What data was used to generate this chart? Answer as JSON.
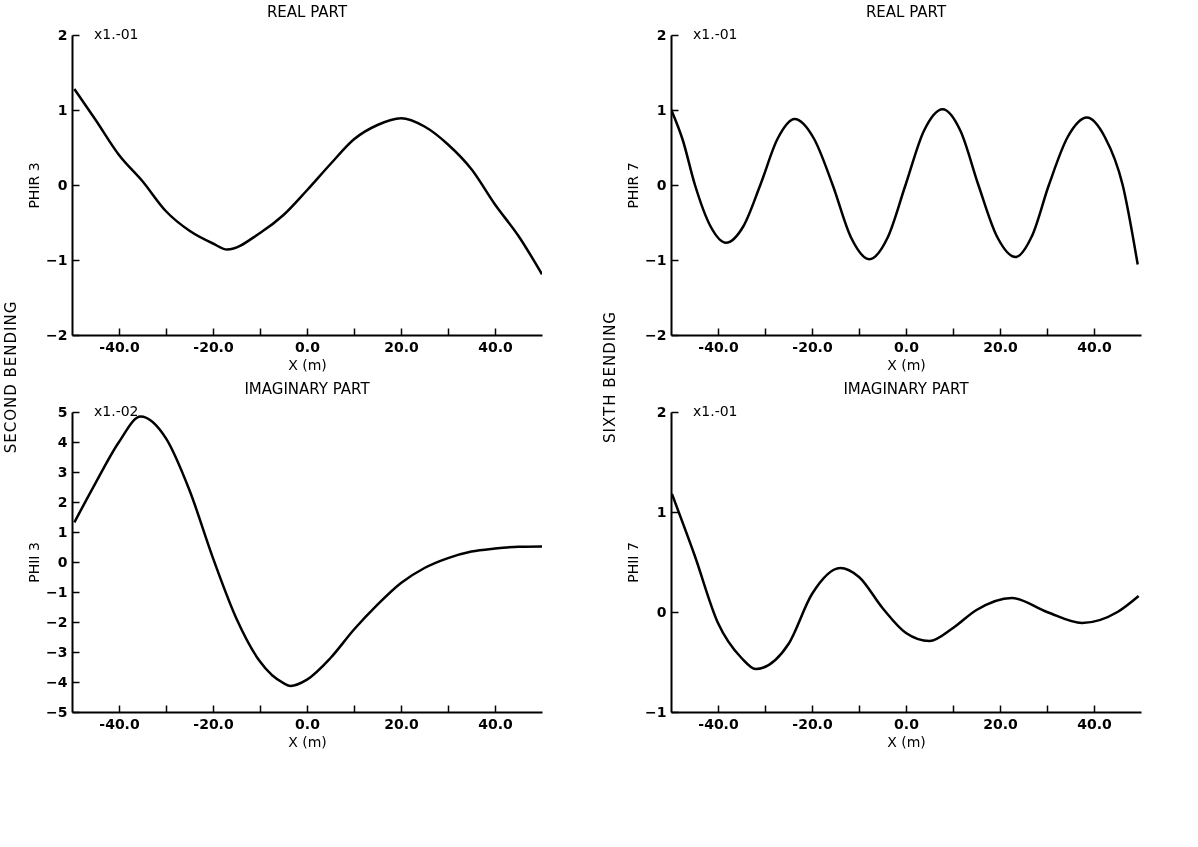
{
  "chart_data": [
    {
      "type": "line",
      "title": "REAL PART",
      "xlabel": "X (m)",
      "ylabel": "PHIR 3",
      "color": "#000000",
      "annotations": [
        "x1.-01",
        "SECOND BENDING"
      ],
      "x": [
        -49.5,
        -45,
        -40,
        -35,
        -30,
        -25,
        -20,
        -17,
        -10,
        -5,
        0,
        5,
        10,
        15,
        20,
        25,
        30,
        35,
        40,
        45,
        50
      ],
      "values": [
        1.28,
        0.87,
        0.4,
        0.05,
        -0.35,
        -0.61,
        -0.78,
        -0.86,
        -0.64,
        -0.4,
        -0.07,
        0.28,
        0.61,
        0.8,
        0.89,
        0.78,
        0.54,
        0.21,
        -0.26,
        -0.68,
        -1.19
      ],
      "xlim": [
        -50,
        50
      ],
      "ylim": [
        -2,
        2
      ],
      "yticks": [
        -2,
        -1,
        0,
        1,
        2
      ],
      "xticks": [
        {
          "value": -40,
          "label": "-40.0"
        },
        {
          "value": -30,
          "label": null
        },
        {
          "value": -20,
          "label": "-20.0"
        },
        {
          "value": -10,
          "label": null
        },
        {
          "value": 0,
          "label": "0.0"
        },
        {
          "value": 10,
          "label": null
        },
        {
          "value": 20,
          "label": "20.0"
        },
        {
          "value": 30,
          "label": null
        },
        {
          "value": 40,
          "label": "40.0"
        }
      ]
    },
    {
      "type": "line",
      "title": "REAL PART",
      "xlabel": "X (m)",
      "ylabel": "PHIR 7",
      "color": "#000000",
      "annotations": [
        "x1.-01",
        "SIXTH BENDING"
      ],
      "x": [
        -50,
        -47.5,
        -44.9,
        -41.6,
        -38.3,
        -34.6,
        -31,
        -27.3,
        -23.7,
        -19.6,
        -15.6,
        -11.7,
        -7.8,
        -3.9,
        -0.1,
        3.8,
        7.8,
        11.6,
        15.4,
        19.3,
        23.3,
        26.8,
        30.4,
        34.4,
        38.5,
        42.3,
        46.1,
        49.3
      ],
      "values": [
        1.01,
        0.6,
        0,
        -0.55,
        -0.77,
        -0.55,
        0,
        0.62,
        0.88,
        0.62,
        0,
        -0.7,
        -0.99,
        -0.7,
        0,
        0.72,
        1.01,
        0.72,
        0,
        -0.68,
        -0.96,
        -0.68,
        0,
        0.64,
        0.9,
        0.64,
        0,
        -1.06
      ],
      "xlim": [
        -50,
        50
      ],
      "ylim": [
        -2,
        2
      ],
      "yticks": [
        -2,
        -1,
        0,
        1,
        2
      ],
      "xticks": [
        {
          "value": -40,
          "label": "-40.0"
        },
        {
          "value": -30,
          "label": null
        },
        {
          "value": -20,
          "label": "-20.0"
        },
        {
          "value": -10,
          "label": null
        },
        {
          "value": 0,
          "label": "0.0"
        },
        {
          "value": 10,
          "label": null
        },
        {
          "value": 20,
          "label": "20.0"
        },
        {
          "value": 30,
          "label": null
        },
        {
          "value": 40,
          "label": "40.0"
        }
      ]
    },
    {
      "type": "line",
      "title": "IMAGINARY PART",
      "xlabel": "X (m)",
      "ylabel": "PHII 3",
      "color": "#000000",
      "annotations": [
        "x1.-02"
      ],
      "x": [
        -49.5,
        -45,
        -40,
        -35.4,
        -30,
        -25,
        -20,
        -15,
        -10,
        -5,
        -3.5,
        0,
        5,
        10,
        15,
        20,
        25,
        30,
        35,
        40,
        45,
        50
      ],
      "values": [
        1.32,
        2.63,
        4.0,
        4.85,
        4.12,
        2.39,
        0.13,
        -1.89,
        -3.32,
        -4.04,
        -4.13,
        -3.92,
        -3.2,
        -2.25,
        -1.42,
        -0.7,
        -0.2,
        0.13,
        0.35,
        0.45,
        0.51,
        0.52
      ],
      "xlim": [
        -50,
        50
      ],
      "ylim": [
        -5,
        5
      ],
      "yticks": [
        -5,
        -4,
        -3,
        -2,
        -1,
        0,
        1,
        2,
        3,
        4,
        5
      ],
      "xticks": [
        {
          "value": -40,
          "label": "-40.0"
        },
        {
          "value": -30,
          "label": null
        },
        {
          "value": -20,
          "label": "-20.0"
        },
        {
          "value": -10,
          "label": null
        },
        {
          "value": 0,
          "label": "0.0"
        },
        {
          "value": 10,
          "label": null
        },
        {
          "value": 20,
          "label": "20.0"
        },
        {
          "value": 30,
          "label": null
        },
        {
          "value": 40,
          "label": "40.0"
        }
      ]
    },
    {
      "type": "line",
      "title": "IMAGINARY PART",
      "xlabel": "X (m)",
      "ylabel": "PHII 7",
      "color": "#000000",
      "annotations": [
        "x1.-01"
      ],
      "x": [
        -49.8,
        -45,
        -40,
        -35,
        -32,
        -25,
        -20,
        -14,
        -10,
        -5,
        0,
        5,
        10,
        15,
        22.5,
        30,
        37.5,
        45,
        49.5
      ],
      "values": [
        1.18,
        0.57,
        -0.11,
        -0.46,
        -0.57,
        -0.32,
        0.18,
        0.44,
        0.35,
        0.04,
        -0.21,
        -0.29,
        -0.16,
        0.02,
        0.14,
        0,
        -0.11,
        0,
        0.16
      ],
      "xlim": [
        -50,
        50
      ],
      "ylim": [
        -1,
        2
      ],
      "yticks": [
        -1,
        0,
        1,
        2
      ],
      "xticks": [
        {
          "value": -40,
          "label": "-40.0"
        },
        {
          "value": -30,
          "label": null
        },
        {
          "value": -20,
          "label": "-20.0"
        },
        {
          "value": -10,
          "label": null
        },
        {
          "value": 0,
          "label": "0.0"
        },
        {
          "value": 10,
          "label": null
        },
        {
          "value": 20,
          "label": "20.0"
        },
        {
          "value": 30,
          "label": null
        },
        {
          "value": 40,
          "label": "40.0"
        }
      ]
    }
  ]
}
